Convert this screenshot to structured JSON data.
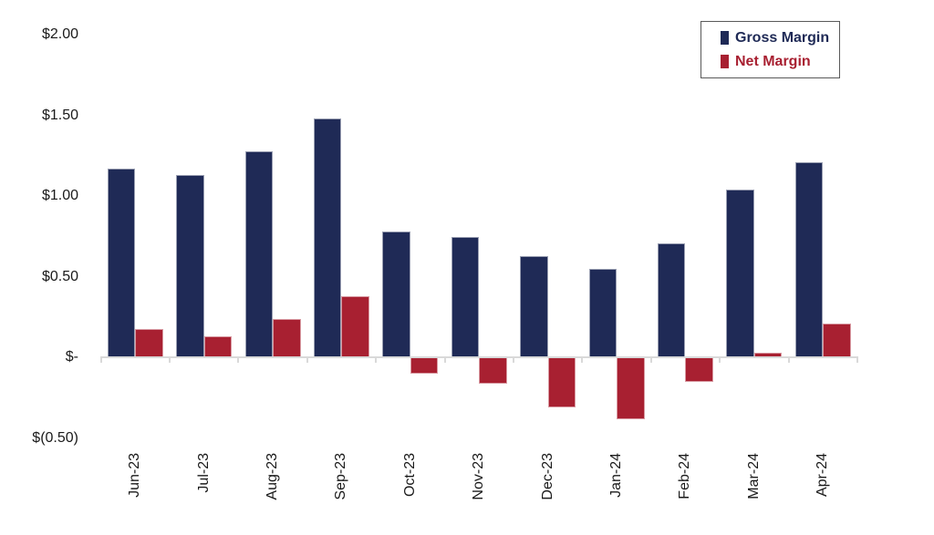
{
  "chart_data": {
    "type": "bar",
    "title": "",
    "xlabel": "",
    "ylabel": "",
    "grid": false,
    "categories": [
      "Jun-23",
      "Jul-23",
      "Aug-23",
      "Sep-23",
      "Oct-23",
      "Nov-23",
      "Dec-23",
      "Jan-24",
      "Feb-24",
      "Mar-24",
      "Apr-24"
    ],
    "series": [
      {
        "name": "Gross Margin",
        "color": "#1F2A56",
        "values": [
          1.17,
          1.13,
          1.28,
          1.48,
          0.78,
          0.75,
          0.63,
          0.55,
          0.71,
          1.04,
          1.21
        ]
      },
      {
        "name": "Net Margin",
        "color": "#A82031",
        "values": [
          0.18,
          0.13,
          0.24,
          0.38,
          -0.1,
          -0.16,
          -0.31,
          -0.38,
          -0.15,
          0.03,
          0.21
        ]
      }
    ],
    "y_axis": {
      "tick_labels": [
        "$2.00",
        "$1.50",
        "$1.00",
        "$0.50",
        "$-",
        "$(0.50)"
      ],
      "tick_values": [
        2.0,
        1.5,
        1.0,
        0.5,
        0.0,
        -0.5
      ],
      "min": -0.5,
      "max": 2.0,
      "format": "currency"
    },
    "x_axis": {
      "label_rotation": -90
    },
    "legend": {
      "position": "top-right",
      "items": [
        {
          "label": "Gross Margin",
          "color": "#1F2A56"
        },
        {
          "label": "Net Margin",
          "color": "#A82031"
        }
      ]
    }
  },
  "colors": {
    "axis_line": "#D9D9D9",
    "tick_text": "#1A1A1A",
    "legend_border": "#595959",
    "background": "#FFFFFF"
  }
}
